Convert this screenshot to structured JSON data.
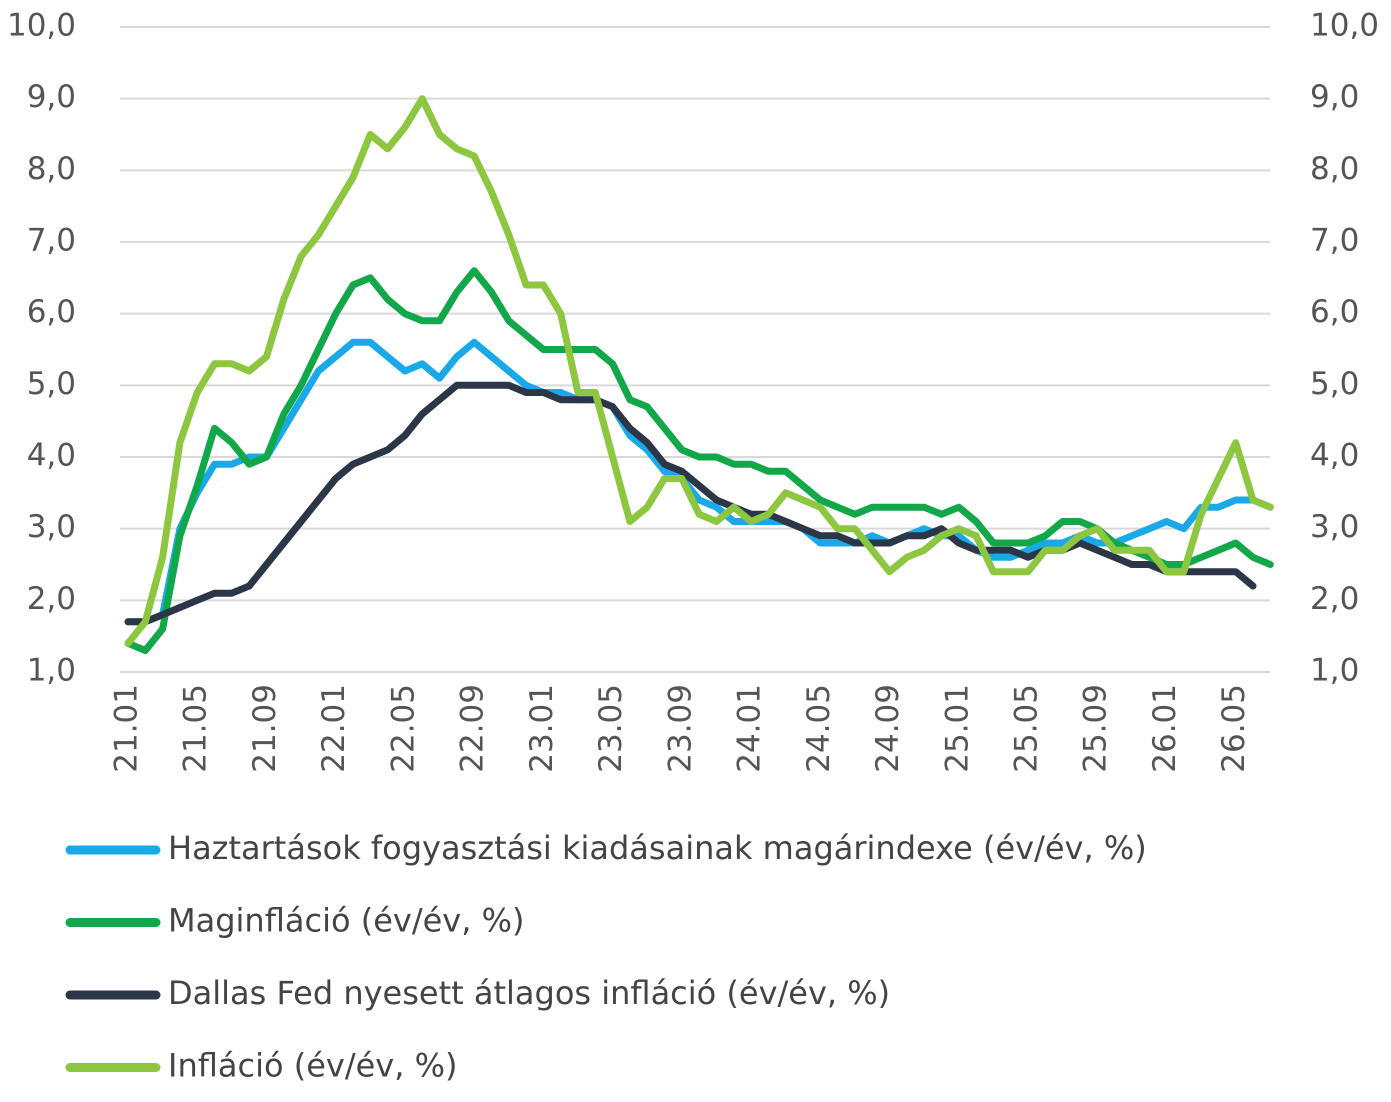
{
  "chart_data": {
    "type": "line",
    "categories": [
      "21.01",
      null,
      null,
      null,
      "21.05",
      null,
      null,
      null,
      "21.09",
      null,
      null,
      null,
      "22.01",
      null,
      null,
      null,
      "22.05",
      null,
      null,
      null,
      "22.09",
      null,
      null,
      null,
      "23.01",
      null,
      null,
      null,
      "23.05",
      null,
      null,
      null,
      "23.09",
      null,
      null,
      null,
      "24.01",
      null,
      null,
      null,
      "24.05",
      null,
      null,
      null,
      "24.09",
      null,
      null,
      null,
      "25.01",
      null,
      null,
      null,
      "25.05",
      null,
      null,
      null,
      "25.09",
      null,
      null,
      null,
      "26.01",
      null,
      null,
      null,
      "26.05",
      null,
      null
    ],
    "series": [
      {
        "name": "Haztartások fogyasztási kiadásainak magárindexe (év/év, %)",
        "color": "#1aa9e8",
        "values": [
          1.7,
          1.7,
          1.8,
          3.0,
          3.5,
          3.9,
          3.9,
          4.0,
          4.0,
          4.4,
          4.8,
          5.2,
          5.4,
          5.6,
          5.6,
          5.4,
          5.2,
          5.3,
          5.1,
          5.4,
          5.6,
          5.4,
          5.2,
          5.0,
          4.9,
          4.9,
          4.8,
          4.8,
          4.7,
          4.3,
          4.1,
          3.8,
          3.7,
          3.4,
          3.3,
          3.1,
          3.1,
          3.1,
          3.1,
          3.0,
          2.8,
          2.8,
          2.8,
          2.9,
          2.8,
          2.9,
          3.0,
          2.9,
          2.9,
          2.7,
          2.6,
          2.6,
          2.7,
          2.8,
          2.8,
          2.9,
          2.8,
          2.8,
          2.9,
          3.0,
          3.1,
          3.0,
          3.3,
          3.3,
          3.4,
          3.4,
          3.3
        ]
      },
      {
        "name": "Maginfláció (év/év, %)",
        "color": "#12a84a",
        "values": [
          1.4,
          1.3,
          1.6,
          2.9,
          3.6,
          4.4,
          4.2,
          3.9,
          4.0,
          4.6,
          5.0,
          5.5,
          6.0,
          6.4,
          6.5,
          6.2,
          6.0,
          5.9,
          5.9,
          6.3,
          6.6,
          6.3,
          5.9,
          5.7,
          5.5,
          5.5,
          5.5,
          5.5,
          5.3,
          4.8,
          4.7,
          4.4,
          4.1,
          4.0,
          4.0,
          3.9,
          3.9,
          3.8,
          3.8,
          3.6,
          3.4,
          3.3,
          3.2,
          3.3,
          3.3,
          3.3,
          3.3,
          3.2,
          3.3,
          3.1,
          2.8,
          2.8,
          2.8,
          2.9,
          3.1,
          3.1,
          3.0,
          2.8,
          2.7,
          2.6,
          2.5,
          2.5,
          2.6,
          2.7,
          2.8,
          2.6,
          2.5
        ]
      },
      {
        "name": "Dallas Fed nyesett átlagos infláció (év/év, %)",
        "color": "#2b3648",
        "values": [
          1.7,
          1.7,
          1.8,
          1.9,
          2.0,
          2.1,
          2.1,
          2.2,
          2.5,
          2.8,
          3.1,
          3.4,
          3.7,
          3.9,
          4.0,
          4.1,
          4.3,
          4.6,
          4.8,
          5.0,
          5.0,
          5.0,
          5.0,
          4.9,
          4.9,
          4.8,
          4.8,
          4.8,
          4.7,
          4.4,
          4.2,
          3.9,
          3.8,
          3.6,
          3.4,
          3.3,
          3.2,
          3.2,
          3.1,
          3.0,
          2.9,
          2.9,
          2.8,
          2.8,
          2.8,
          2.9,
          2.9,
          3.0,
          2.8,
          2.7,
          2.7,
          2.7,
          2.6,
          2.7,
          2.7,
          2.8,
          2.7,
          2.6,
          2.5,
          2.5,
          2.4,
          2.4,
          2.4,
          2.4,
          2.4,
          2.2,
          null
        ]
      },
      {
        "name": "Infláció (év/év, %)",
        "color": "#8dc63f",
        "values": [
          1.4,
          1.7,
          2.6,
          4.2,
          4.9,
          5.3,
          5.3,
          5.2,
          5.4,
          6.2,
          6.8,
          7.1,
          7.5,
          7.9,
          8.5,
          8.3,
          8.6,
          9.0,
          8.5,
          8.3,
          8.2,
          7.7,
          7.1,
          6.4,
          6.4,
          6.0,
          4.9,
          4.9,
          4.0,
          3.1,
          3.3,
          3.7,
          3.7,
          3.2,
          3.1,
          3.3,
          3.1,
          3.2,
          3.5,
          3.4,
          3.3,
          3.0,
          3.0,
          2.7,
          2.4,
          2.6,
          2.7,
          2.9,
          3.0,
          2.9,
          2.4,
          2.4,
          2.4,
          2.7,
          2.7,
          2.9,
          3.0,
          2.7,
          2.7,
          2.7,
          2.4,
          2.4,
          3.2,
          3.7,
          4.2,
          3.4,
          3.3
        ]
      }
    ],
    "ylim": [
      1,
      10
    ],
    "yticks": [
      {
        "value": 1,
        "label": "1,0"
      },
      {
        "value": 2,
        "label": "2,0"
      },
      {
        "value": 3,
        "label": "3,0"
      },
      {
        "value": 4,
        "label": "4,0"
      },
      {
        "value": 5,
        "label": "5,0"
      },
      {
        "value": 6,
        "label": "6,0"
      },
      {
        "value": 7,
        "label": "7,0"
      },
      {
        "value": 8,
        "label": "8,0"
      },
      {
        "value": 9,
        "label": "9,0"
      },
      {
        "value": 10,
        "label": "10,0"
      }
    ],
    "y2lim": [
      1,
      10
    ],
    "y2ticks": [
      {
        "value": 1,
        "label": "1,0"
      },
      {
        "value": 2,
        "label": "2,0"
      },
      {
        "value": 3,
        "label": "3,0"
      },
      {
        "value": 4,
        "label": "4,0"
      },
      {
        "value": 5,
        "label": "5,0"
      },
      {
        "value": 6,
        "label": "6,0"
      },
      {
        "value": 7,
        "label": "7,0"
      },
      {
        "value": 8,
        "label": "8,0"
      },
      {
        "value": 9,
        "label": "9,0"
      },
      {
        "value": 10,
        "label": "10,0"
      }
    ],
    "grid": true,
    "legend": "bottom"
  }
}
